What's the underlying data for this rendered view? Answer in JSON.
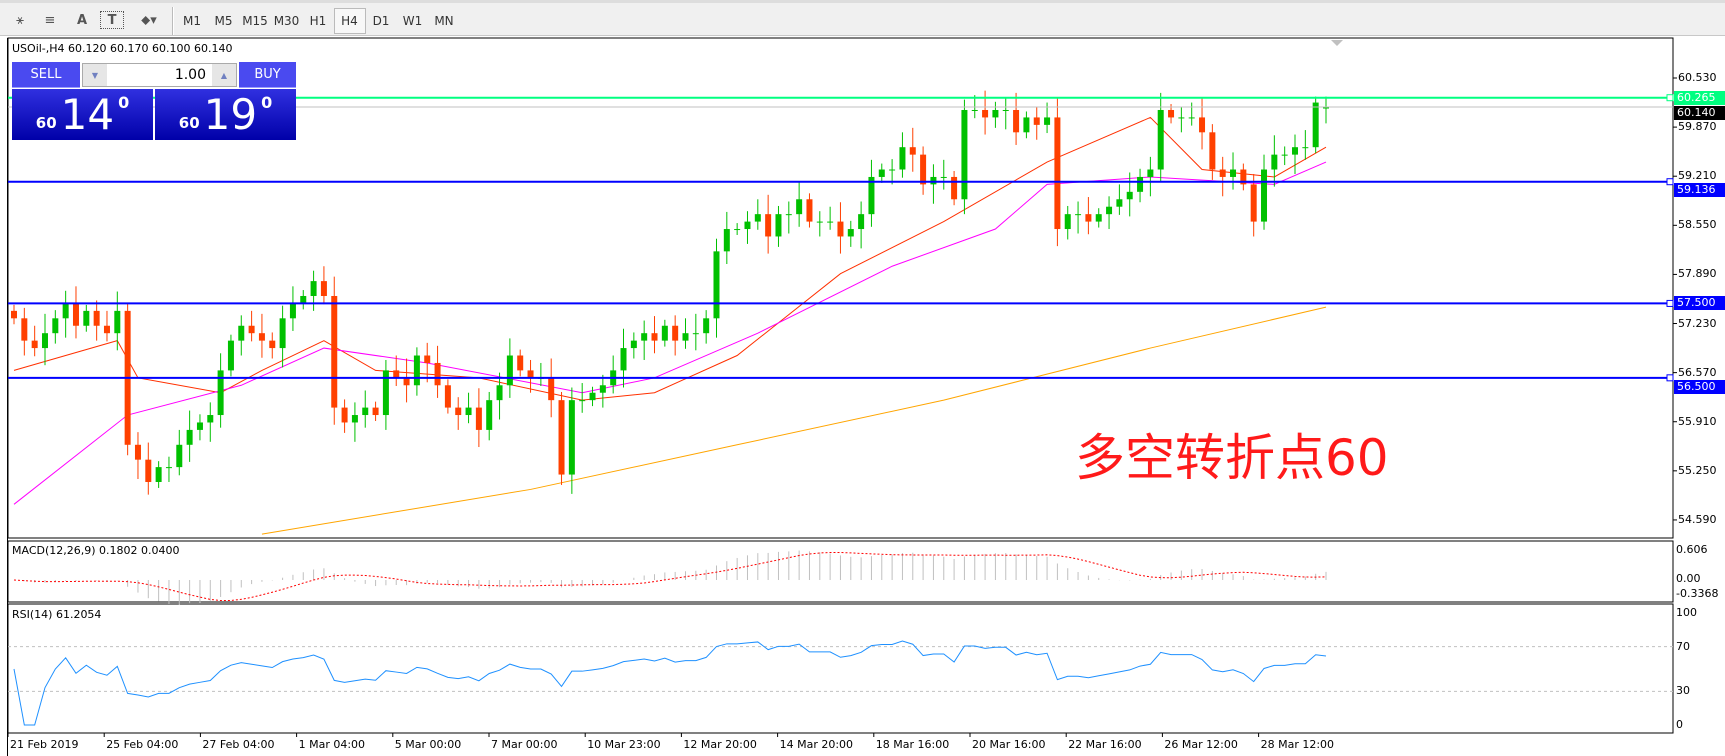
{
  "toolbar": {
    "tools": [
      {
        "name": "elliott-icon",
        "label": "⚹"
      },
      {
        "name": "fibo-icon",
        "label": "≡"
      },
      {
        "name": "text-icon",
        "label": "A"
      },
      {
        "name": "text-label-icon",
        "label": "T"
      },
      {
        "name": "arrows-icon",
        "label": "⬥▾"
      }
    ],
    "timeframes": [
      "M1",
      "M5",
      "M15",
      "M30",
      "H1",
      "H4",
      "D1",
      "W1",
      "MN"
    ],
    "active_timeframe": "H4"
  },
  "chart": {
    "title": "USOil-,H4  60.120 60.170 60.100 60.140",
    "trade": {
      "sell_label": "SELL",
      "buy_label": "BUY",
      "lots": "1.00",
      "sell_small": "60",
      "sell_big": "14",
      "sell_sup": "0",
      "buy_small": "60",
      "buy_big": "19",
      "buy_sup": "0"
    },
    "annotation": "多空转折点60",
    "colors": {
      "bull": "#00c000",
      "bear": "#ff4000",
      "ma_fast": "#ff3000",
      "ma_mid": "#ff00ff",
      "ma_slow": "#ffa500",
      "hline": "#0000ff",
      "ask_line": "#00ff80",
      "rsi": "#1e90ff",
      "macd_signal": "#ff0000",
      "macd_hist": "#c0c0c0"
    }
  },
  "chart_data": {
    "type": "candlestick",
    "symbol": "USOil-",
    "timeframe": "H4",
    "ylim": [
      54.4,
      60.85
    ],
    "y_ticks": [
      "60.530",
      "59.870",
      "59.210",
      "58.550",
      "57.890",
      "57.230",
      "56.570",
      "55.910",
      "55.250",
      "54.590"
    ],
    "x_ticks": [
      "21 Feb 2019",
      "25 Feb 04:00",
      "27 Feb 04:00",
      "1 Mar 04:00",
      "5 Mar 00:00",
      "7 Mar 00:00",
      "10 Mar 23:00",
      "12 Mar 20:00",
      "14 Mar 20:00",
      "18 Mar 16:00",
      "20 Mar 16:00",
      "22 Mar 16:00",
      "26 Mar 12:00",
      "28 Mar 12:00"
    ],
    "close": [
      57.3,
      57.0,
      56.9,
      57.1,
      57.3,
      57.5,
      57.2,
      57.4,
      57.2,
      57.1,
      57.4,
      55.6,
      55.4,
      55.1,
      55.3,
      55.3,
      55.6,
      55.8,
      55.9,
      56.0,
      56.6,
      57.0,
      57.2,
      57.1,
      57.0,
      56.9,
      57.3,
      57.5,
      57.6,
      57.8,
      57.6,
      56.1,
      55.9,
      56.0,
      56.1,
      56.0,
      56.6,
      56.5,
      56.4,
      56.8,
      56.7,
      56.4,
      56.1,
      56.0,
      56.1,
      55.8,
      56.2,
      56.4,
      56.8,
      56.6,
      56.5,
      56.5,
      56.2,
      55.2,
      56.2,
      56.2,
      56.3,
      56.4,
      56.6,
      56.9,
      57.0,
      57.1,
      57.0,
      57.2,
      57.0,
      57.1,
      57.1,
      57.3,
      58.2,
      58.5,
      58.5,
      58.6,
      58.7,
      58.4,
      58.7,
      58.7,
      58.9,
      58.6,
      58.6,
      58.6,
      58.4,
      58.5,
      58.7,
      59.2,
      59.3,
      59.3,
      59.6,
      59.5,
      59.1,
      59.2,
      59.2,
      58.9,
      60.1,
      60.1,
      60.0,
      60.1,
      60.1,
      59.8,
      60.0,
      59.9,
      60.0,
      58.5,
      58.7,
      58.7,
      58.6,
      58.7,
      58.8,
      58.9,
      59.0,
      59.2,
      59.3,
      60.1,
      60.0,
      60.0,
      60.0,
      59.8,
      59.3,
      59.2,
      59.3,
      59.1,
      58.6,
      59.3,
      59.5,
      59.5,
      59.6,
      59.6,
      60.2,
      60.14
    ],
    "last_bar": {
      "open": 60.12,
      "high": 60.17,
      "low": 60.1,
      "close": 60.14
    },
    "moving_averages": [
      {
        "color": "#ff3000",
        "points": [
          [
            0,
            56.6
          ],
          [
            10,
            57.0
          ],
          [
            12,
            56.5
          ],
          [
            20,
            56.3
          ],
          [
            24,
            56.6
          ],
          [
            30,
            57.0
          ],
          [
            35,
            56.6
          ],
          [
            45,
            56.5
          ],
          [
            55,
            56.2
          ],
          [
            62,
            56.3
          ],
          [
            70,
            56.8
          ],
          [
            80,
            57.9
          ],
          [
            90,
            58.6
          ],
          [
            100,
            59.4
          ],
          [
            110,
            60.0
          ],
          [
            115,
            59.3
          ],
          [
            122,
            59.2
          ],
          [
            127,
            59.6
          ]
        ]
      },
      {
        "color": "#ff00ff",
        "points": [
          [
            0,
            54.8
          ],
          [
            11,
            56.0
          ],
          [
            22,
            56.4
          ],
          [
            30,
            56.9
          ],
          [
            40,
            56.7
          ],
          [
            55,
            56.3
          ],
          [
            62,
            56.5
          ],
          [
            72,
            57.1
          ],
          [
            85,
            58.0
          ],
          [
            95,
            58.5
          ],
          [
            100,
            59.1
          ],
          [
            110,
            59.2
          ],
          [
            122,
            59.1
          ],
          [
            127,
            59.4
          ]
        ]
      },
      {
        "color": "#ffa500",
        "points": [
          [
            24,
            54.4
          ],
          [
            50,
            55.0
          ],
          [
            70,
            55.6
          ],
          [
            90,
            56.2
          ],
          [
            110,
            56.9
          ],
          [
            127,
            57.45
          ]
        ]
      }
    ],
    "horizontal_lines": [
      {
        "price": "60.265",
        "color": "#00ff80"
      },
      {
        "price": "59.136",
        "color": "#0000ff"
      },
      {
        "price": "57.500",
        "color": "#0000ff"
      },
      {
        "price": "56.500",
        "color": "#0000ff"
      }
    ],
    "bid_label": "60.140",
    "macd": {
      "label": "MACD(12,26,9) 0.1802 0.0400",
      "y_ticks": [
        "0.606",
        "0.00",
        "-0.3368"
      ]
    },
    "rsi": {
      "label": "RSI(14) 61.2054",
      "y_ticks": [
        "100",
        "70",
        "30",
        "0"
      ],
      "levels": [
        70,
        30
      ]
    }
  }
}
